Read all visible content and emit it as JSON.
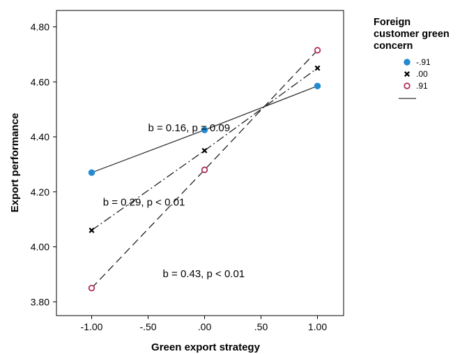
{
  "chart_data": {
    "type": "line",
    "x": [
      -1.0,
      0.0,
      1.0
    ],
    "xlabel": "Green export strategy",
    "ylabel": "Export performance",
    "xlim": [
      -1.35,
      1.25
    ],
    "ylim": [
      3.75,
      4.85
    ],
    "xticks": [
      -1.0,
      -0.5,
      0.0,
      0.5,
      1.0
    ],
    "xtick_labels": [
      "-1.00",
      "-.50",
      ".00",
      ".50",
      "1.00"
    ],
    "yticks": [
      3.8,
      4.0,
      4.2,
      4.4,
      4.6,
      4.8
    ],
    "ytick_labels": [
      "3.80",
      "4.00",
      "4.20",
      "4.40",
      "4.60",
      "4.80"
    ],
    "grid": false,
    "legend": {
      "title_lines": [
        "Foreign",
        "customer green",
        "concern"
      ],
      "placement": "right"
    },
    "series": [
      {
        "name": "-.91",
        "values": [
          4.27,
          4.425,
          4.585
        ],
        "marker": "filled-circle",
        "color": "#2389D0",
        "line": "solid"
      },
      {
        "name": ".00",
        "values": [
          4.06,
          4.35,
          4.65
        ],
        "marker": "x",
        "color": "#000000",
        "line": "dash-dot"
      },
      {
        "name": ".91",
        "values": [
          3.85,
          4.28,
          4.715
        ],
        "marker": "open-circle",
        "color": "#B0305F",
        "line": "dashed"
      }
    ],
    "annotations": [
      {
        "text": "b = 0.16, p = 0.09",
        "x": -0.5,
        "y": 4.42
      },
      {
        "text": "b = 0.29, p < 0.01",
        "x": -0.9,
        "y": 4.15
      },
      {
        "text": "b = 0.43, p < 0.01",
        "x": -0.37,
        "y": 3.89
      }
    ]
  }
}
